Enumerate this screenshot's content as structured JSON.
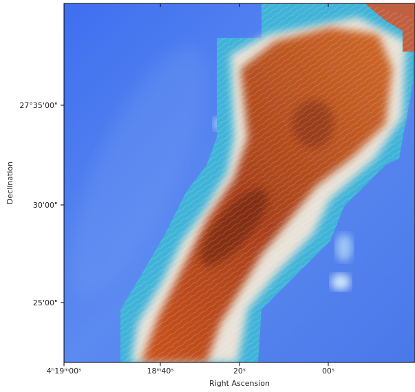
{
  "plot": {
    "x_axis": {
      "label": "Right Ascension",
      "ticks": [
        "4ʰ19ᵐ00ˢ",
        "18ᵐ40ˢ",
        "20ˢ",
        "00ˢ"
      ]
    },
    "y_axis": {
      "label": "Declination",
      "ticks": [
        "27°35'00\"",
        "30'00\"",
        "25'00\""
      ]
    }
  }
}
